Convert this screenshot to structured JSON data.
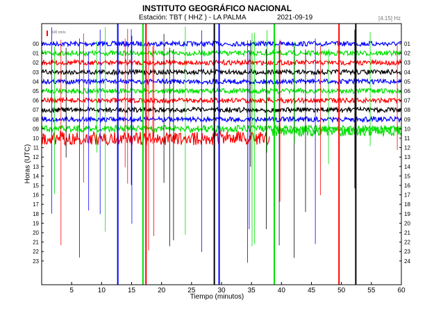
{
  "title": "INSTITUTO GEOGRÁFICO NACIONAL",
  "station_label": "Estación:  TBT ( HHZ ) - LA PALMA",
  "date": "2021-09-19",
  "freq_label": "[4.15] Hz",
  "scale_label": "100 nm/s",
  "chart_data": {
    "type": "line",
    "title": "INSTITUTO GEOGRÁFICO NACIONAL",
    "subtitle": "Estación:  TBT ( HHZ ) - LA PALMA",
    "xlabel": "Tiempo (minutos)",
    "ylabel": "Horas (UTC)",
    "xlim": [
      0,
      60
    ],
    "x_ticks": [
      5,
      10,
      15,
      20,
      25,
      30,
      35,
      40,
      45,
      50,
      55,
      60
    ],
    "left_ticks": [
      "00",
      "01",
      "02",
      "03",
      "04",
      "05",
      "06",
      "07",
      "08",
      "09",
      "10",
      "11",
      "12",
      "13",
      "14",
      "15",
      "16",
      "17",
      "18",
      "19",
      "20",
      "21",
      "22",
      "23"
    ],
    "right_ticks": [
      "01",
      "02",
      "03",
      "04",
      "05",
      "06",
      "07",
      "08",
      "09",
      "10",
      "11",
      "12",
      "13",
      "14",
      "15",
      "16",
      "17",
      "18",
      "19",
      "20",
      "21",
      "22",
      "23",
      "24"
    ],
    "trace_colors": [
      "#0000ff",
      "#00e000",
      "#ff0000",
      "#000000"
    ],
    "traces_recorded_through_minute": 60,
    "last_trace_hour": 10,
    "last_trace_end_minute": 38,
    "big_events_minutes": [
      12.7,
      16.9,
      17.4,
      28.8,
      29.6,
      38.8,
      49.6,
      52.4
    ]
  }
}
